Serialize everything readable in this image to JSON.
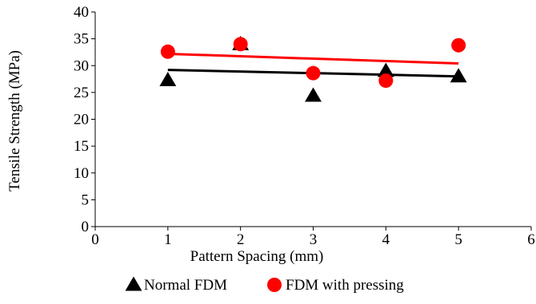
{
  "chart_data": {
    "type": "scatter",
    "title": "",
    "xlabel": "Pattern Spacing (mm)",
    "ylabel": "Tensile Strength (MPa)",
    "xlim": [
      0,
      6
    ],
    "ylim": [
      0,
      40
    ],
    "xticks": [
      "0",
      "1",
      "2",
      "3",
      "4",
      "5",
      "6"
    ],
    "yticks": [
      "0",
      "5",
      "10",
      "15",
      "20",
      "25",
      "30",
      "35",
      "40"
    ],
    "grid": false,
    "legend_position": "bottom",
    "series": [
      {
        "name": "Normal FDM",
        "marker": "triangle",
        "color": "#000000",
        "x": [
          1,
          2,
          3,
          4,
          5
        ],
        "y": [
          27.3,
          34.0,
          24.4,
          29.0,
          28.0
        ],
        "trendline": {
          "type": "linear",
          "y_at_1": 29.2,
          "y_at_5": 28.0
        }
      },
      {
        "name": "FDM with pressing",
        "marker": "circle",
        "color": "#ff0000",
        "x": [
          1,
          2,
          3,
          4,
          5
        ],
        "y": [
          32.6,
          34.0,
          28.6,
          27.2,
          33.8
        ],
        "trendline": {
          "type": "linear",
          "y_at_1": 32.2,
          "y_at_5": 30.4
        }
      }
    ]
  }
}
